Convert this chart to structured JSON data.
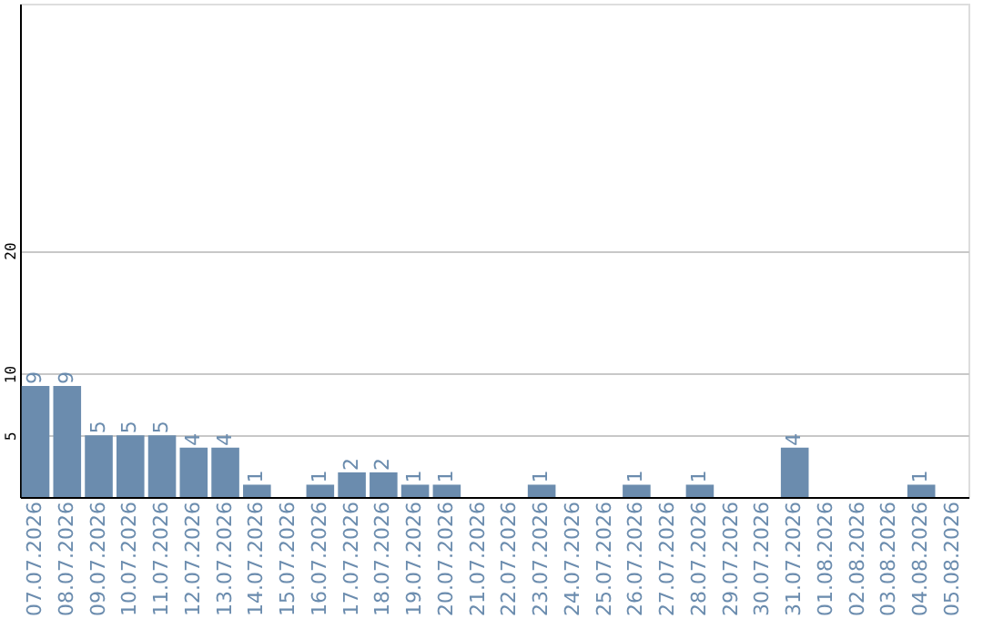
{
  "chart_data": {
    "type": "bar",
    "categories": [
      "07.07.2026",
      "08.07.2026",
      "09.07.2026",
      "10.07.2026",
      "11.07.2026",
      "12.07.2026",
      "13.07.2026",
      "14.07.2026",
      "15.07.2026",
      "16.07.2026",
      "17.07.2026",
      "18.07.2026",
      "19.07.2026",
      "20.07.2026",
      "21.07.2026",
      "22.07.2026",
      "23.07.2026",
      "24.07.2026",
      "25.07.2026",
      "26.07.2026",
      "27.07.2026",
      "28.07.2026",
      "29.07.2026",
      "30.07.2026",
      "31.07.2026",
      "01.08.2026",
      "02.08.2026",
      "03.08.2026",
      "04.08.2026",
      "05.08.2026"
    ],
    "values": [
      9,
      9,
      5,
      5,
      5,
      4,
      4,
      1,
      null,
      1,
      2,
      2,
      1,
      1,
      null,
      null,
      1,
      null,
      null,
      1,
      null,
      1,
      null,
      null,
      4,
      null,
      null,
      null,
      1,
      null
    ],
    "color": "#6b8cae",
    "ylim": [
      0,
      40
    ],
    "yticks": [
      5,
      10,
      20
    ],
    "grid": "y",
    "data_labels": true
  }
}
